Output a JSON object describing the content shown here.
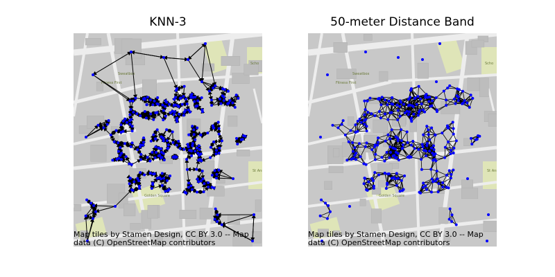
{
  "panels": [
    {
      "title": "KNN-3",
      "attribution": "Map tiles by Stamen Design, CC BY 3.0 -- Map\ndata (C) OpenStreetMap contributors",
      "graph": "directed-arrows"
    },
    {
      "title": "50-meter Distance Band",
      "attribution": "Map tiles by Stamen Design, CC BY 3.0 -- Map\ndata (C) OpenStreetMap contributors",
      "graph": "undirected-lines"
    }
  ],
  "map_labels": [
    "Sweatbox",
    "Fitness First",
    "Golden Square",
    "St Anne's Church Ground",
    "Scho"
  ],
  "colors": {
    "tile_bg": "#c8c8c8",
    "road": "#ededed",
    "park": "#dfe5b8",
    "node": "#0000ff",
    "edge": "#000000"
  }
}
